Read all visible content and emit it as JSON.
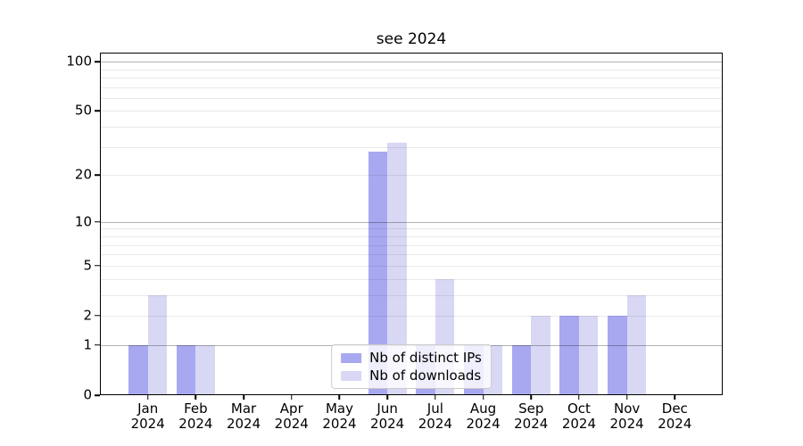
{
  "chart_data": {
    "type": "bar",
    "title": "see 2024",
    "categories": [
      "Jan 2024",
      "Feb 2024",
      "Mar 2024",
      "Apr 2024",
      "May 2024",
      "Jun 2024",
      "Jul 2024",
      "Aug 2024",
      "Sep 2024",
      "Oct 2024",
      "Nov 2024",
      "Dec 2024"
    ],
    "series": [
      {
        "name": "Nb of distinct IPs",
        "color": "#a8a8f0",
        "values": [
          1,
          1,
          0,
          0,
          0,
          28,
          1,
          1,
          1,
          2,
          2,
          0
        ]
      },
      {
        "name": "Nb of downloads",
        "color": "#d8d8f5",
        "values": [
          3,
          1,
          0,
          0,
          0,
          32,
          4,
          1,
          2,
          2,
          3,
          0
        ]
      }
    ],
    "xlabel": "",
    "ylabel": "",
    "yscale": "log1p",
    "ylim": [
      0,
      113
    ],
    "yticks": [
      0,
      1,
      2,
      5,
      10,
      20,
      50,
      100
    ],
    "grid": {
      "major_lines": [
        1,
        10,
        100
      ],
      "minor_lines": [
        2,
        3,
        4,
        5,
        6,
        7,
        8,
        9,
        20,
        30,
        40,
        50,
        60,
        70,
        80,
        90
      ],
      "major_color": "#b3b3b3",
      "minor_color": "#e9e9e9"
    },
    "legend": {
      "position": "lower center",
      "entries": [
        "Nb of distinct IPs",
        "Nb of downloads"
      ]
    }
  }
}
